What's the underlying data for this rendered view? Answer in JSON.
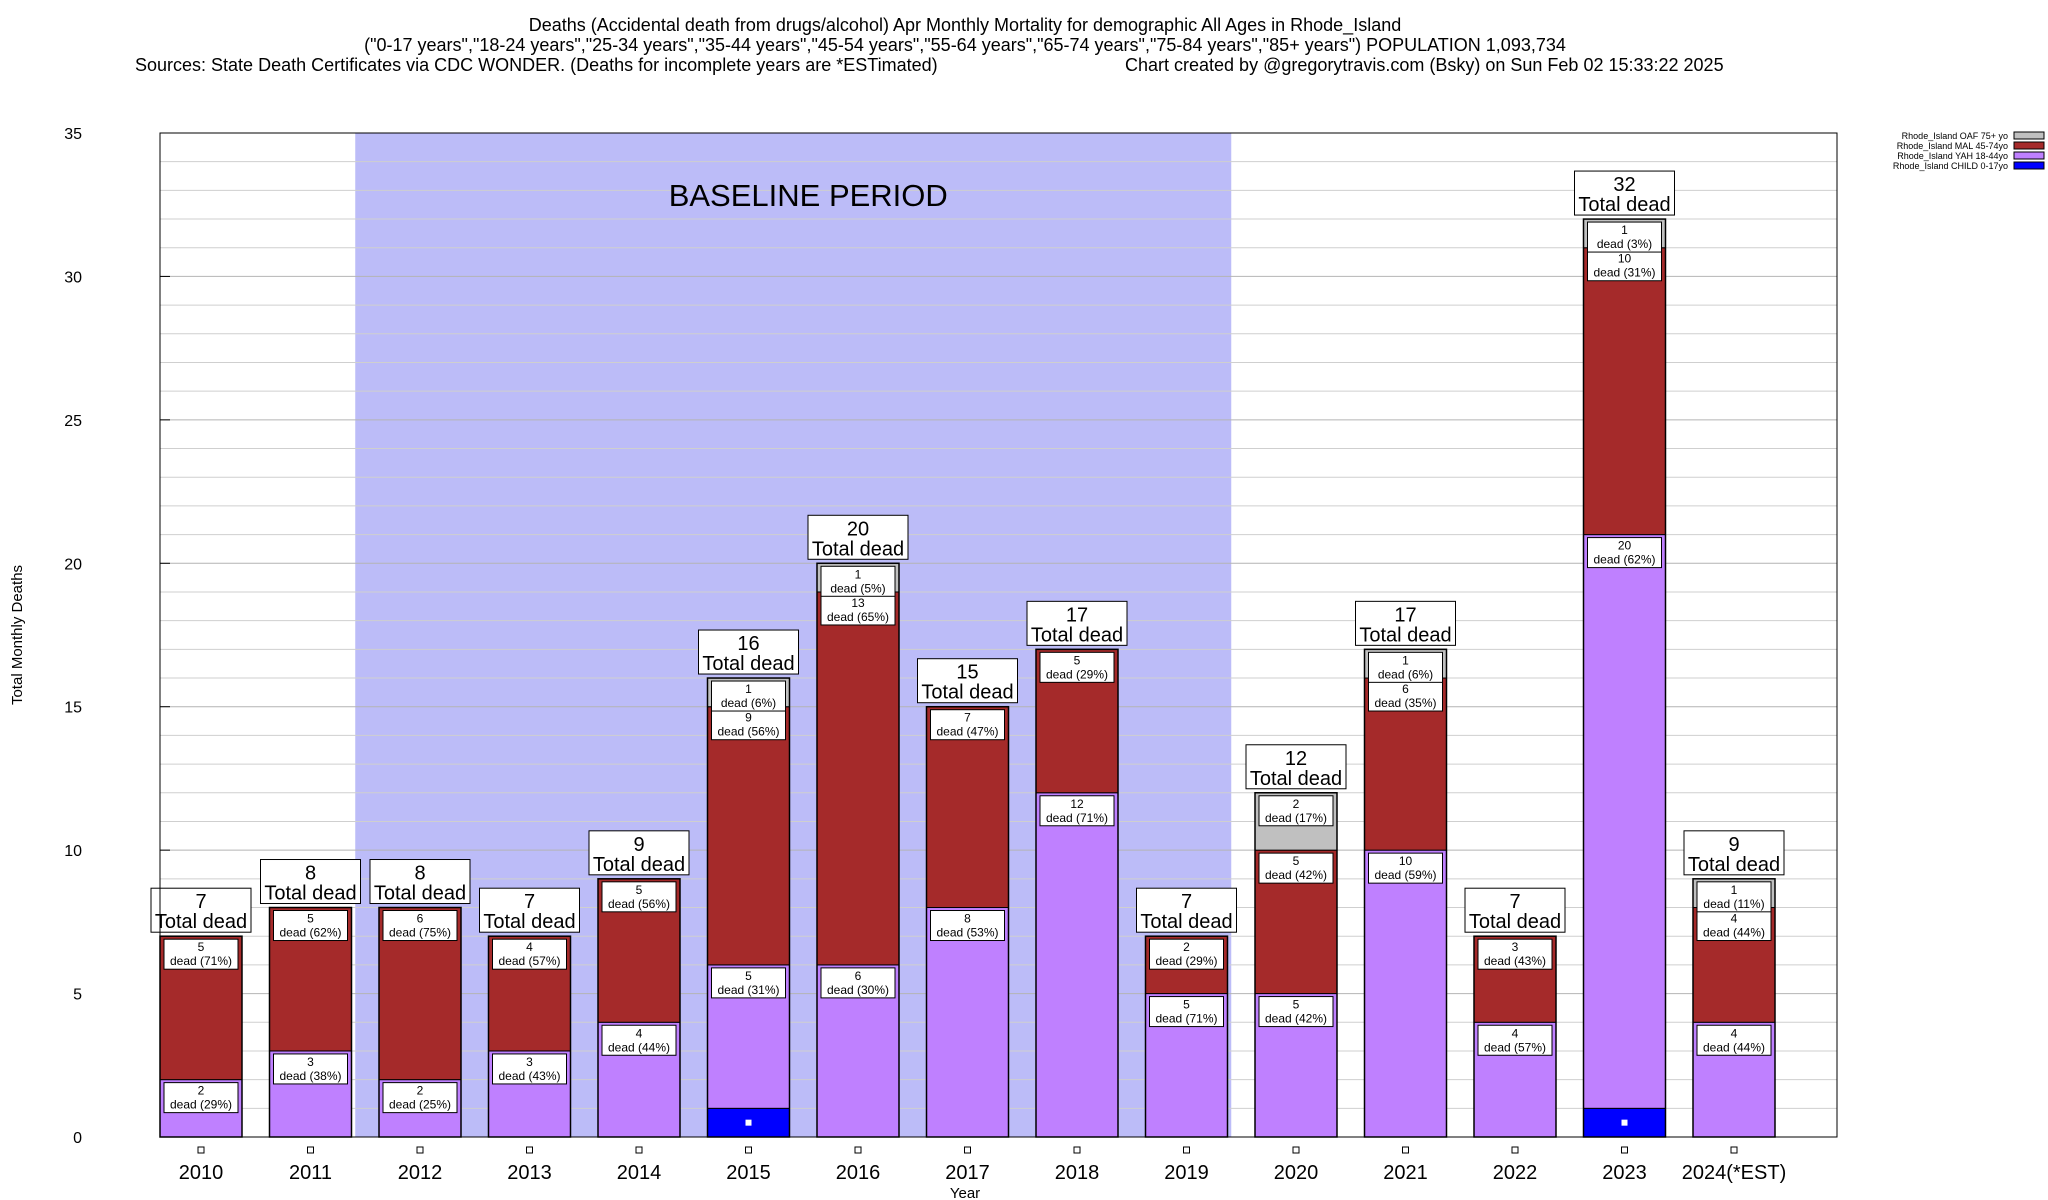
{
  "header": {
    "line1": "Deaths (Accidental death from drugs/alcohol) Apr Monthly Mortality for demographic All Ages in Rhode_Island",
    "line2": "(\"0-17 years\",\"18-24 years\",\"25-34 years\",\"35-44 years\",\"45-54 years\",\"55-64 years\",\"65-74 years\",\"75-84 years\",\"85+ years\") POPULATION 1,093,734",
    "line3_left": "Sources: State Death Certificates via CDC WONDER. (Deaths for incomplete years are *ESTimated)",
    "line3_right": "Chart created by @gregorytravis.com (Bsky) on Sun Feb 02 15:33:22 2025"
  },
  "chart_data": {
    "type": "bar",
    "stacked": true,
    "xlabel": "Year",
    "ylabel": "Total Monthly Deaths",
    "ylim": [
      0,
      35
    ],
    "yticks": [
      0,
      5,
      10,
      15,
      20,
      25,
      30,
      35
    ],
    "grid": true,
    "legend_position": "top-right",
    "baseline_label": "BASELINE PERIOD",
    "baseline_range": [
      "2012",
      "2019"
    ],
    "total_label": "Total dead",
    "segment_label": "dead",
    "categories": [
      "2010",
      "2011",
      "2012",
      "2013",
      "2014",
      "2015",
      "2016",
      "2017",
      "2018",
      "2019",
      "2020",
      "2021",
      "2022",
      "2023",
      "2024(*EST)"
    ],
    "totals": [
      7,
      8,
      8,
      7,
      9,
      16,
      20,
      15,
      17,
      7,
      12,
      17,
      7,
      32,
      9
    ],
    "series": [
      {
        "name": "Rhode_Island CHILD 0-17yo",
        "color": "#0000ff",
        "values": [
          0,
          0,
          0,
          0,
          0,
          1,
          0,
          0,
          0,
          0,
          0,
          0,
          0,
          1,
          0
        ],
        "labels": [
          null,
          null,
          null,
          null,
          null,
          null,
          null,
          null,
          null,
          null,
          null,
          null,
          null,
          null,
          null
        ]
      },
      {
        "name": "Rhode_Island YAH 18-44yo",
        "color": "#bf80ff",
        "values": [
          2,
          3,
          2,
          3,
          4,
          5,
          6,
          8,
          12,
          5,
          5,
          10,
          4,
          20,
          4
        ],
        "labels": [
          "2|dead (29%)",
          "3|dead (38%)",
          "2|dead (25%)",
          "3|dead (43%)",
          "4|dead (44%)",
          "5|dead (31%)",
          "6|dead (30%)",
          "8|dead (53%)",
          "12|dead (71%)",
          "5|dead (71%)",
          "5|dead (42%)",
          "10|dead (59%)",
          "4|dead (57%)",
          "20|dead (62%)",
          "4|dead (44%)"
        ]
      },
      {
        "name": "Rhode_Island MAL 45-74yo",
        "color": "#a52a2a",
        "values": [
          5,
          5,
          6,
          4,
          5,
          9,
          13,
          7,
          5,
          2,
          5,
          6,
          3,
          10,
          4
        ],
        "labels": [
          "5|dead (71%)",
          "5|dead (62%)",
          "6|dead (75%)",
          "4|dead (57%)",
          "5|dead (56%)",
          "9|dead (56%)",
          "13|dead (65%)",
          "7|dead (47%)",
          "5|dead (29%)",
          "2|dead (29%)",
          "5|dead (42%)",
          "6|dead (35%)",
          "3|dead (43%)",
          "10|dead (31%)",
          "4|dead (44%)"
        ]
      },
      {
        "name": "Rhode_Island OAF 75+ yo",
        "color": "#c0c0c0",
        "values": [
          0,
          0,
          0,
          0,
          0,
          1,
          1,
          0,
          0,
          0,
          2,
          1,
          0,
          1,
          1
        ],
        "labels": [
          null,
          null,
          null,
          null,
          null,
          "1|dead (6%)",
          "1|dead (5%)",
          null,
          null,
          null,
          "2|dead (17%)",
          "1|dead (6%)",
          null,
          "1|dead (3%)",
          "1|dead (11%)"
        ]
      }
    ]
  }
}
